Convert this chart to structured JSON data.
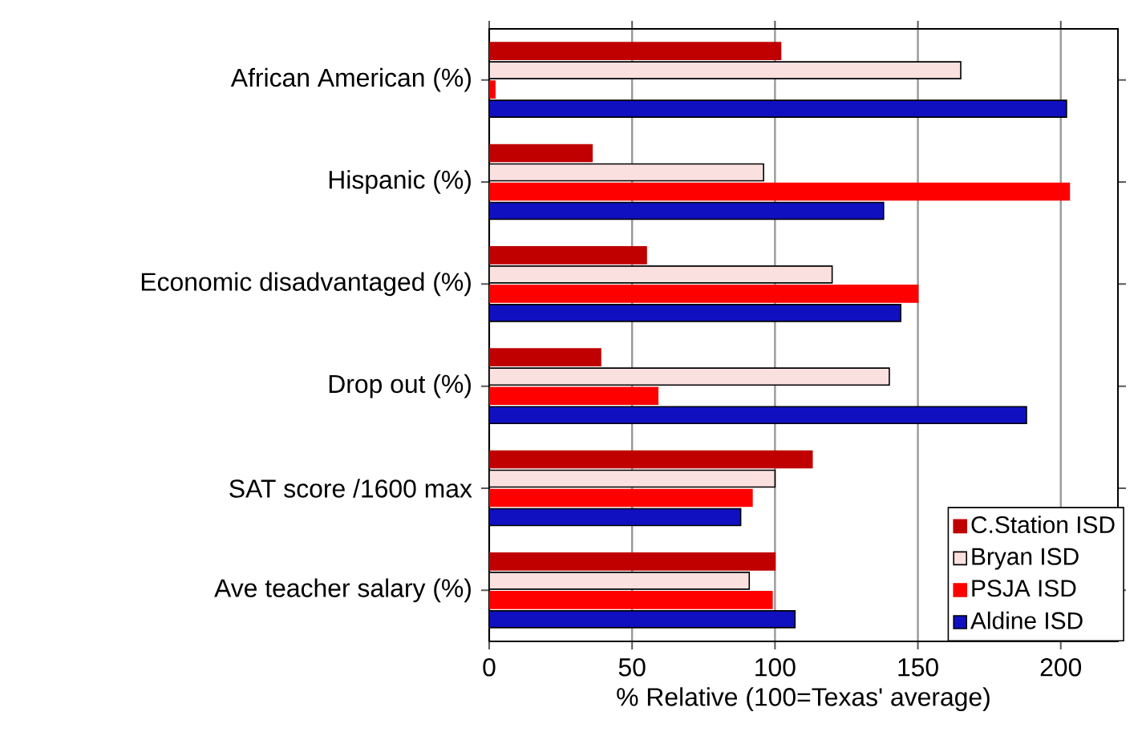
{
  "chart_data": {
    "type": "bar",
    "orientation": "horizontal",
    "xlabel": "% Relative (100=Texas' average)",
    "categories": [
      "African American (%)",
      "Hispanic (%)",
      "Economic disadvantaged (%)",
      "Drop out (%)",
      "SAT score /1600 max",
      "Ave teacher salary (%)"
    ],
    "series": [
      {
        "name": "C.Station ISD",
        "color": "#c00000",
        "values": [
          102,
          36,
          55,
          39,
          113,
          100
        ]
      },
      {
        "name": "Bryan ISD",
        "color": "#fbe0e0",
        "values": [
          165,
          96,
          120,
          140,
          100,
          91
        ]
      },
      {
        "name": "PSJA ISD",
        "color": "#ff0000",
        "values": [
          2,
          203,
          150,
          59,
          92,
          99
        ]
      },
      {
        "name": "Aldine ISD",
        "color": "#1010c0",
        "values": [
          202,
          138,
          144,
          188,
          88,
          107
        ]
      }
    ],
    "xlim": [
      0,
      220
    ],
    "xticks": [
      0,
      50,
      100,
      150,
      200
    ],
    "grid": "x",
    "legend": "bottom right"
  }
}
